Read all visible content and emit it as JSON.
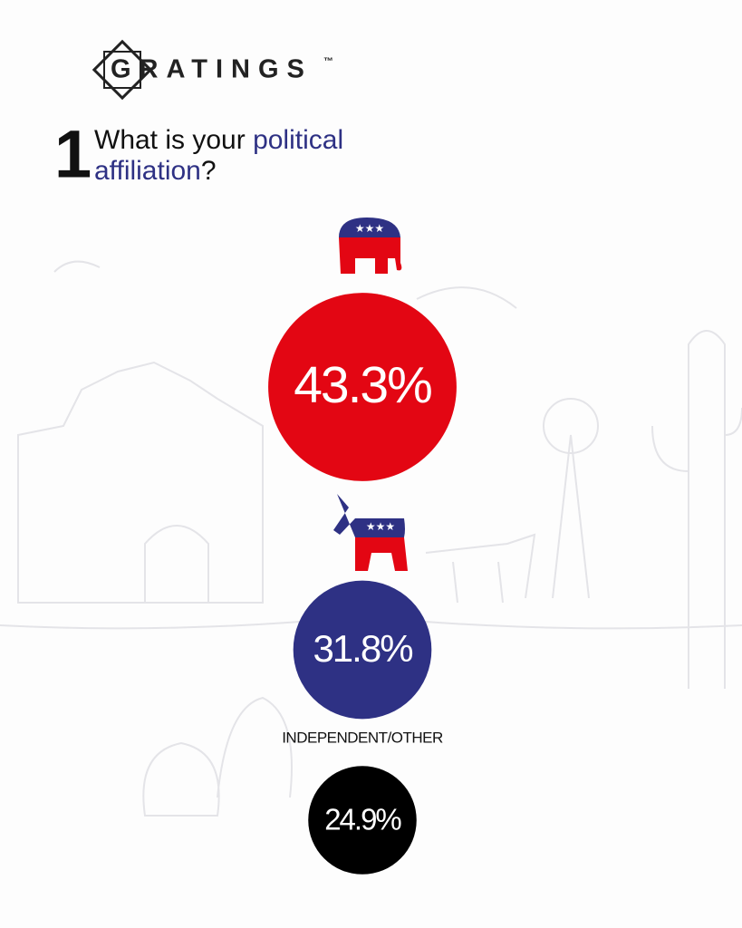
{
  "brand": "GRATINGS",
  "trademark": "™",
  "question_number": "1",
  "chart_data": {
    "type": "bubble",
    "title_parts": [
      "What is your ",
      "political",
      "affiliation",
      "?"
    ],
    "categories": [
      null,
      null,
      "INDEPENDENT/OTHER"
    ],
    "values": [
      43.3,
      31.8,
      24.9
    ],
    "value_labels": [
      "43.3%",
      "31.8%",
      "24.9%"
    ],
    "colors": [
      "#e30613",
      "#2e3184",
      "#000000"
    ]
  }
}
